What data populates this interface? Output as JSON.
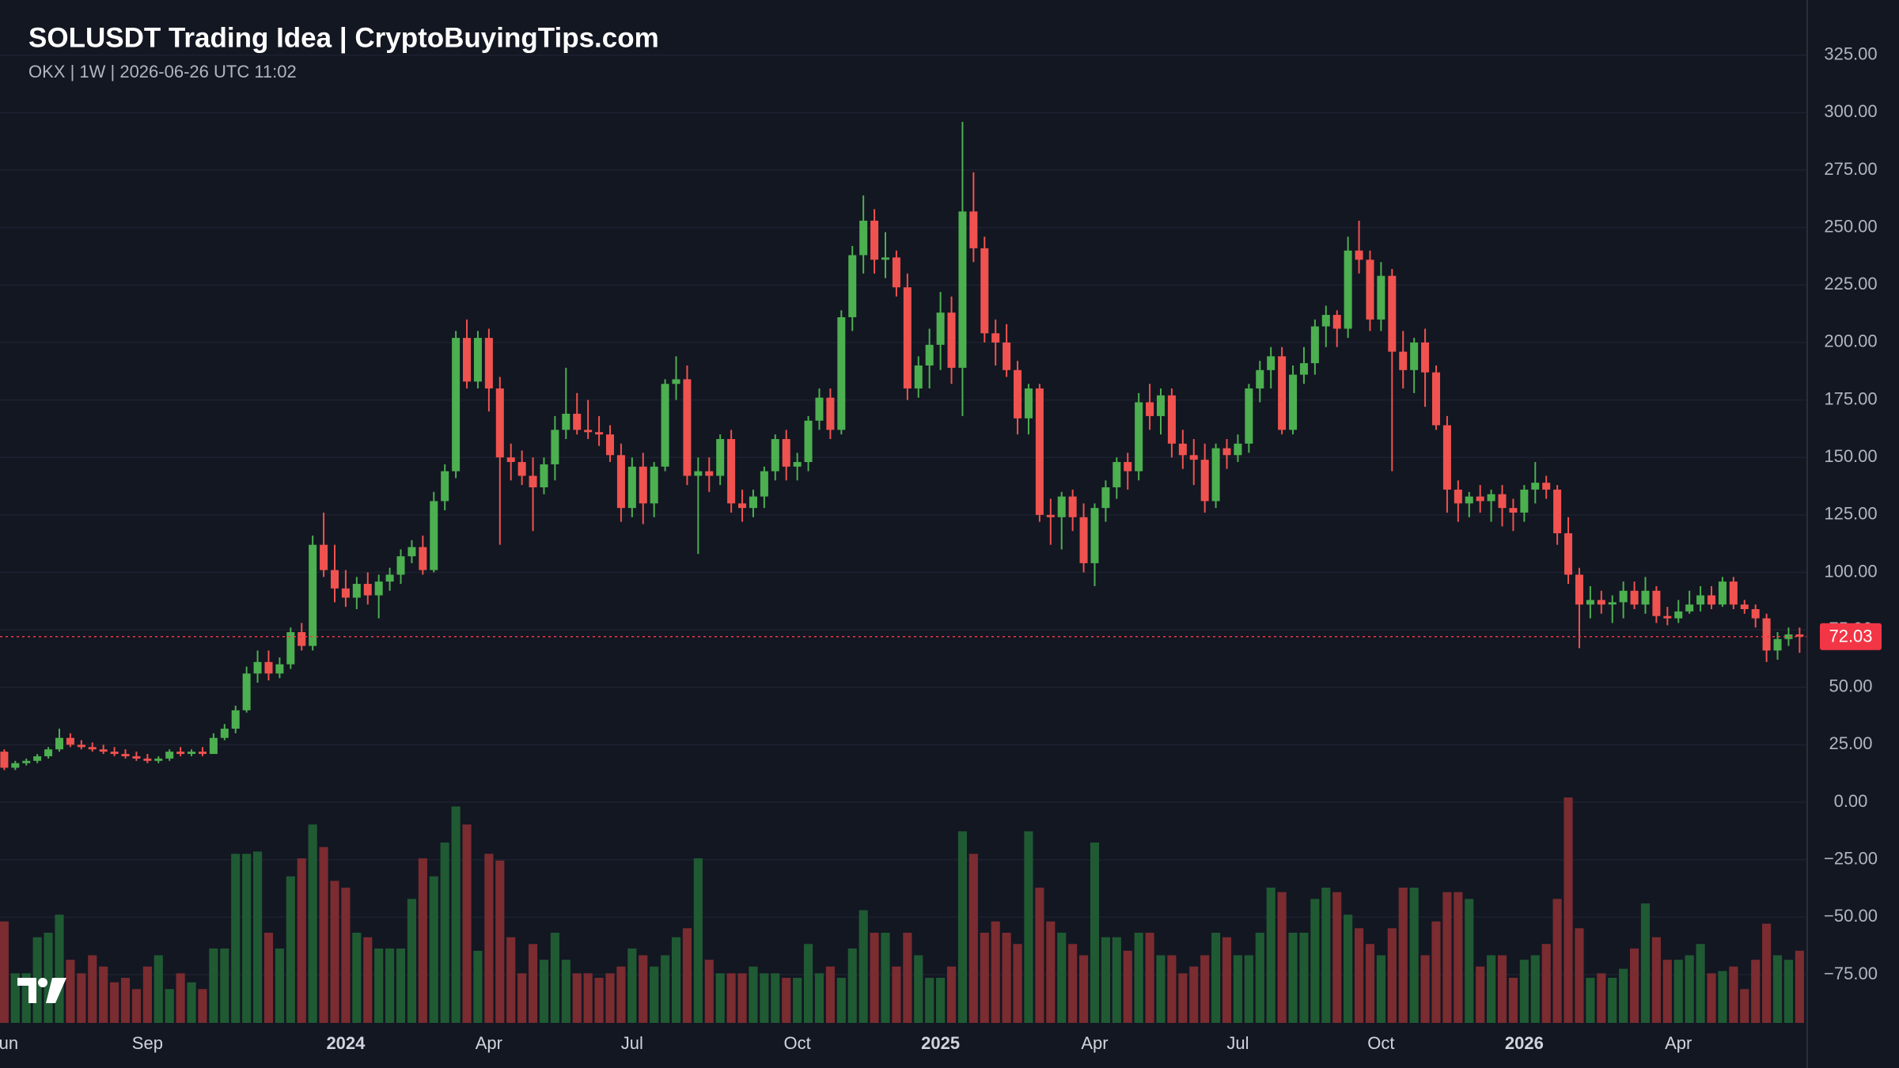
{
  "chart_data": {
    "type": "candlestick",
    "title": "SOLUSDT Trading Idea | CryptoBuyingTips.com",
    "subtitle": "OKX | 1W | 2026-06-26 UTC 11:02",
    "categories": [
      "Jun",
      null,
      null,
      null,
      null,
      null,
      null,
      null,
      null,
      null,
      null,
      null,
      null,
      "Sep",
      null,
      null,
      null,
      null,
      null,
      null,
      null,
      null,
      null,
      null,
      null,
      null,
      null,
      null,
      null,
      null,
      null,
      "2024",
      null,
      null,
      null,
      null,
      null,
      null,
      null,
      null,
      null,
      null,
      null,
      null,
      "Apr",
      null,
      null,
      null,
      null,
      null,
      null,
      null,
      null,
      null,
      null,
      null,
      null,
      "Jul",
      null,
      null,
      null,
      null,
      null,
      null,
      null,
      null,
      null,
      null,
      null,
      null,
      null,
      null,
      "Oct",
      null,
      null,
      null,
      null,
      null,
      null,
      null,
      null,
      null,
      null,
      null,
      null,
      "2025",
      null,
      null,
      null,
      null,
      null,
      null,
      null,
      null,
      null,
      null,
      null,
      null,
      null,
      "Apr",
      null,
      null,
      null,
      null,
      null,
      null,
      null,
      null,
      null,
      null,
      null,
      null,
      "Jul",
      null,
      null,
      null,
      null,
      null,
      null,
      null,
      null,
      null,
      null,
      null,
      null,
      "Oct",
      null,
      null,
      null,
      null,
      null,
      null,
      null,
      null,
      null,
      null,
      null,
      null,
      "2026",
      null,
      null,
      null,
      null,
      null,
      null,
      null,
      null,
      null,
      null,
      null,
      null,
      null,
      "Apr",
      null,
      null,
      null,
      null,
      null,
      null,
      null,
      null,
      null,
      null,
      null
    ],
    "open": [
      22,
      15,
      17,
      18,
      20,
      23,
      28,
      25,
      24,
      23,
      22,
      21,
      20,
      19,
      18,
      19,
      22,
      21,
      22,
      21,
      28,
      32,
      40,
      56,
      61,
      56,
      60,
      74,
      68,
      112,
      101,
      93,
      89,
      95,
      90,
      96,
      99,
      107,
      111,
      101,
      131,
      144,
      202,
      183,
      202,
      180,
      150,
      148,
      142,
      137,
      147,
      162,
      169,
      162,
      161,
      160,
      151,
      128,
      146,
      130,
      146,
      182,
      184,
      142,
      144,
      142,
      158,
      130,
      128,
      133,
      144,
      158,
      146,
      148,
      166,
      176,
      162,
      211,
      238,
      253,
      236,
      237,
      224,
      180,
      190,
      199,
      213,
      189,
      257,
      241,
      204,
      200,
      188,
      167,
      180,
      125,
      124,
      133,
      124,
      104,
      128,
      137,
      148,
      144,
      174,
      168,
      177,
      156,
      151,
      149,
      131,
      154,
      151,
      156,
      180,
      188,
      194,
      162,
      186,
      191,
      207,
      212,
      206,
      240,
      236,
      210,
      229,
      196,
      188,
      200,
      187,
      164,
      136,
      130,
      133,
      131,
      134,
      128,
      126,
      136,
      139,
      136,
      117,
      99,
      86,
      88,
      86,
      87,
      92,
      86,
      92,
      81,
      80,
      83,
      86,
      90,
      86,
      96,
      86,
      84,
      80,
      66,
      71,
      73
    ],
    "high": [
      23,
      18,
      19,
      21,
      24,
      32,
      30,
      27,
      26,
      25,
      24,
      23,
      22,
      21,
      20,
      23,
      24,
      23,
      24,
      30,
      34,
      42,
      59,
      66,
      66,
      63,
      76,
      78,
      116,
      126,
      112,
      101,
      98,
      100,
      99,
      102,
      110,
      114,
      116,
      135,
      147,
      205,
      210,
      205,
      206,
      185,
      156,
      153,
      150,
      150,
      168,
      189,
      178,
      175,
      168,
      164,
      156,
      150,
      152,
      148,
      184,
      194,
      190,
      150,
      150,
      160,
      162,
      136,
      136,
      146,
      160,
      162,
      152,
      168,
      180,
      180,
      214,
      242,
      264,
      258,
      248,
      240,
      230,
      194,
      206,
      222,
      220,
      296,
      274,
      246,
      210,
      208,
      192,
      182,
      182,
      132,
      135,
      136,
      130,
      130,
      140,
      150,
      152,
      178,
      182,
      180,
      180,
      162,
      158,
      156,
      156,
      158,
      160,
      182,
      192,
      198,
      198,
      190,
      198,
      210,
      216,
      214,
      246,
      253,
      240,
      235,
      232,
      205,
      202,
      206,
      190,
      168,
      140,
      135,
      138,
      136,
      138,
      132,
      138,
      148,
      142,
      138,
      124,
      102,
      94,
      92,
      90,
      96,
      96,
      98,
      94,
      85,
      88,
      92,
      94,
      94,
      98,
      98,
      88,
      86,
      82,
      74,
      76,
      76
    ],
    "low": [
      14,
      14,
      16,
      17,
      19,
      22,
      24,
      23,
      22,
      21,
      20,
      19,
      18,
      17,
      17,
      18,
      20,
      20,
      20,
      21,
      27,
      30,
      39,
      52,
      53,
      54,
      58,
      66,
      66,
      98,
      87,
      85,
      84,
      86,
      80,
      92,
      95,
      104,
      99,
      100,
      127,
      141,
      180,
      180,
      170,
      112,
      140,
      138,
      118,
      134,
      140,
      158,
      160,
      158,
      155,
      148,
      122,
      124,
      121,
      124,
      144,
      175,
      138,
      108,
      135,
      138,
      126,
      122,
      124,
      128,
      140,
      140,
      140,
      144,
      162,
      158,
      160,
      205,
      230,
      230,
      228,
      220,
      175,
      176,
      180,
      188,
      182,
      168,
      235,
      200,
      190,
      185,
      160,
      160,
      122,
      112,
      110,
      118,
      100,
      94,
      122,
      132,
      136,
      140,
      162,
      160,
      150,
      145,
      138,
      126,
      128,
      145,
      148,
      152,
      174,
      180,
      160,
      160,
      182,
      186,
      198,
      198,
      202,
      230,
      205,
      205,
      144,
      180,
      178,
      172,
      162,
      126,
      122,
      124,
      126,
      122,
      120,
      118,
      122,
      130,
      132,
      112,
      95,
      67,
      80,
      82,
      78,
      80,
      84,
      82,
      78,
      77,
      78,
      82,
      83,
      84,
      85,
      84,
      82,
      76,
      61,
      62,
      68,
      65
    ],
    "close": [
      15,
      17,
      18,
      20,
      23,
      28,
      25,
      24,
      23,
      22,
      21,
      20,
      19,
      18,
      19,
      22,
      21,
      22,
      21,
      28,
      32,
      40,
      56,
      61,
      56,
      60,
      74,
      68,
      112,
      101,
      93,
      89,
      95,
      90,
      96,
      99,
      107,
      111,
      101,
      131,
      144,
      202,
      183,
      202,
      180,
      150,
      148,
      142,
      137,
      147,
      162,
      169,
      162,
      161,
      160,
      151,
      128,
      146,
      130,
      146,
      182,
      184,
      142,
      144,
      142,
      158,
      130,
      128,
      133,
      144,
      158,
      146,
      148,
      166,
      176,
      162,
      211,
      238,
      253,
      236,
      237,
      224,
      180,
      190,
      199,
      213,
      189,
      257,
      241,
      204,
      200,
      188,
      167,
      180,
      125,
      124,
      133,
      124,
      104,
      128,
      137,
      148,
      144,
      174,
      168,
      177,
      156,
      151,
      149,
      131,
      154,
      151,
      156,
      180,
      188,
      194,
      162,
      186,
      191,
      207,
      212,
      206,
      240,
      236,
      210,
      229,
      196,
      188,
      200,
      187,
      164,
      136,
      130,
      133,
      131,
      134,
      128,
      126,
      136,
      139,
      136,
      117,
      99,
      86,
      88,
      86,
      87,
      92,
      86,
      92,
      81,
      80,
      83,
      86,
      90,
      86,
      96,
      86,
      84,
      80,
      66,
      71,
      73,
      72.03
    ],
    "volume": [
      45,
      22,
      22,
      38,
      40,
      48,
      28,
      22,
      30,
      25,
      18,
      20,
      15,
      25,
      30,
      15,
      22,
      18,
      15,
      33,
      33,
      75,
      75,
      76,
      40,
      33,
      65,
      73,
      88,
      78,
      63,
      60,
      40,
      38,
      33,
      33,
      33,
      55,
      73,
      65,
      80,
      96,
      88,
      32,
      75,
      72,
      38,
      22,
      35,
      28,
      40,
      28,
      22,
      22,
      20,
      22,
      25,
      33,
      30,
      25,
      30,
      38,
      42,
      73,
      28,
      22,
      22,
      22,
      25,
      22,
      22,
      20,
      20,
      35,
      22,
      25,
      20,
      33,
      50,
      40,
      40,
      25,
      40,
      30,
      20,
      20,
      25,
      85,
      75,
      40,
      45,
      40,
      35,
      85,
      60,
      45,
      40,
      35,
      30,
      80,
      38,
      38,
      32,
      40,
      40,
      30,
      30,
      22,
      25,
      30,
      40,
      38,
      30,
      30,
      40,
      60,
      58,
      40,
      40,
      55,
      60,
      58,
      48,
      42,
      35,
      30,
      42,
      60,
      60,
      30,
      45,
      58,
      58,
      55,
      25,
      30,
      30,
      20,
      28,
      30,
      35,
      55,
      100,
      42,
      20,
      22,
      20,
      24,
      33,
      53,
      38,
      28,
      28,
      30,
      35,
      22,
      23,
      25,
      15,
      28,
      44,
      30,
      28,
      32
    ],
    "vlim": [
      0,
      100
    ],
    "ylim": [
      -96,
      349
    ],
    "yticks": [
      {
        "value": -75,
        "label": "−75.00"
      },
      {
        "value": -50,
        "label": "−50.00"
      },
      {
        "value": -25,
        "label": "−25.00"
      },
      {
        "value": 0,
        "label": "0.00"
      },
      {
        "value": 25,
        "label": "25.00"
      },
      {
        "value": 50,
        "label": "50.00"
      },
      {
        "value": 75,
        "label": "75.00"
      },
      {
        "value": 100,
        "label": "100.00"
      },
      {
        "value": 125,
        "label": "125.00"
      },
      {
        "value": 150,
        "label": "150.00"
      },
      {
        "value": 175,
        "label": "175.00"
      },
      {
        "value": 200,
        "label": "200.00"
      },
      {
        "value": 225,
        "label": "225.00"
      },
      {
        "value": 250,
        "label": "250.00"
      },
      {
        "value": 275,
        "label": "275.00"
      },
      {
        "value": 300,
        "label": "300.00"
      },
      {
        "value": 325,
        "label": "325.00"
      }
    ],
    "grid": true,
    "last_price": 72.03,
    "up_color": "#4caf50",
    "down_color": "#f0524f",
    "volume_up_color": "#1f5a33",
    "volume_down_color": "#7a2c30",
    "last_price_color": "#f23645"
  }
}
